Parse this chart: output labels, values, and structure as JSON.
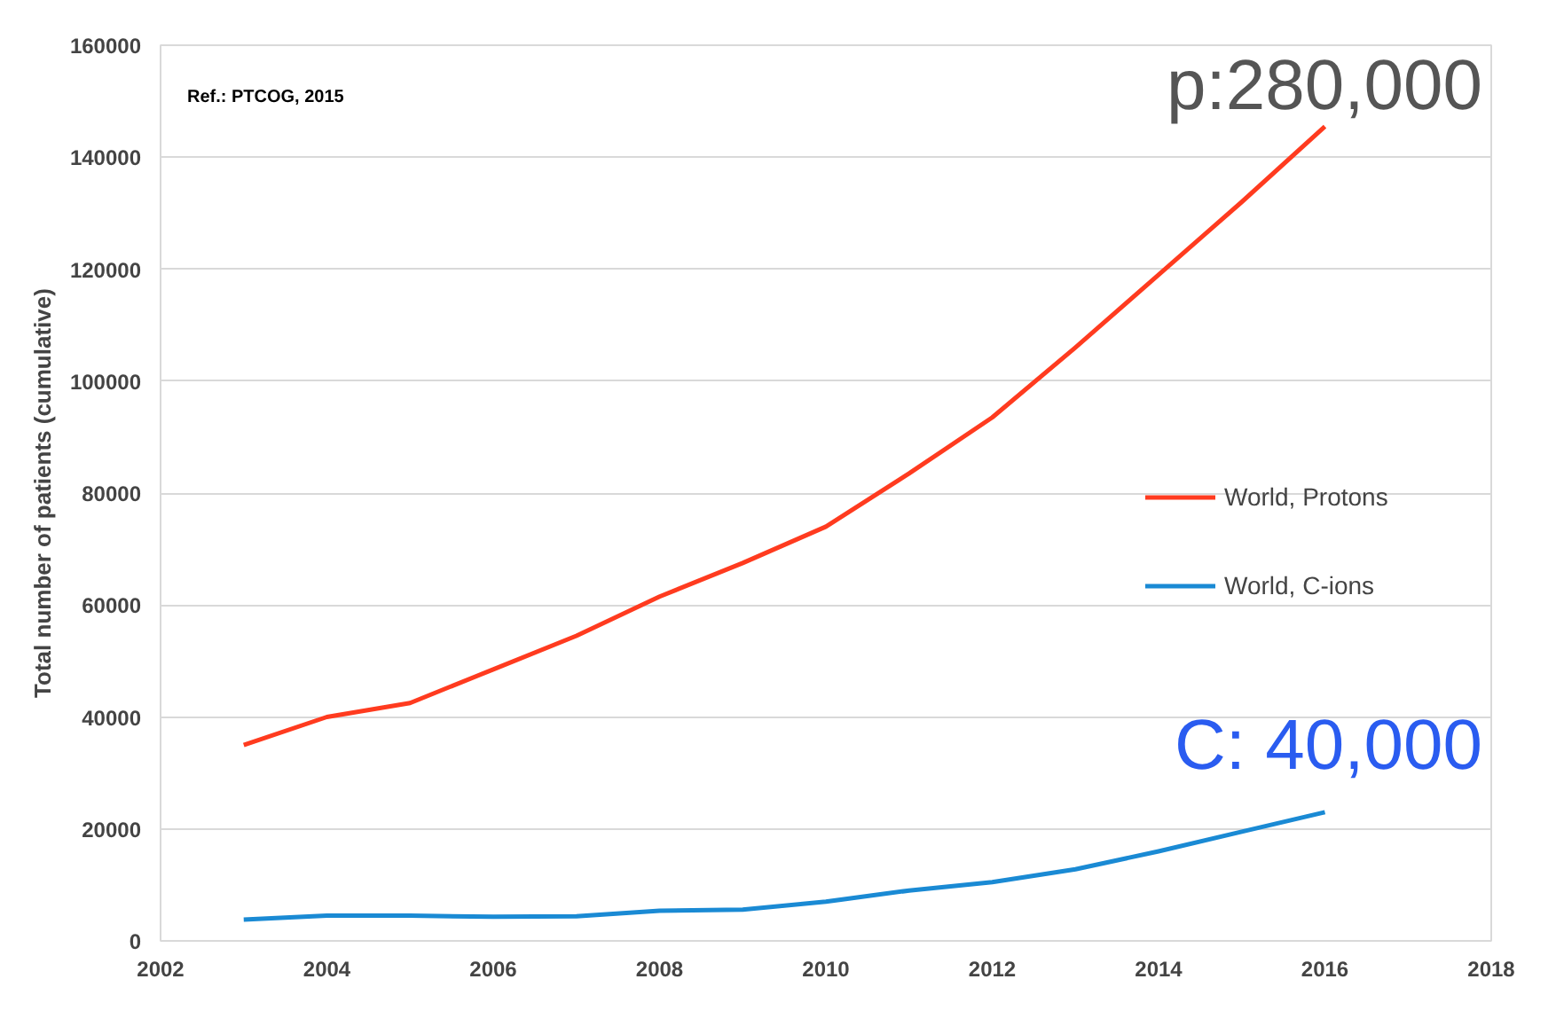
{
  "chart_data": {
    "type": "line",
    "ylabel": "Total number of patients (cumulative)",
    "x": [
      2003,
      2004,
      2005,
      2006,
      2007,
      2008,
      2009,
      2010,
      2011,
      2012,
      2013,
      2014,
      2015,
      2016
    ],
    "series": [
      {
        "name": "World, Protons",
        "color": "#ff3b1f",
        "values": [
          35000,
          40000,
          42500,
          48500,
          54500,
          61500,
          67500,
          74000,
          83500,
          93500,
          106000,
          119000,
          132000,
          145500
        ]
      },
      {
        "name": "World, C-ions",
        "color": "#1a8ad4",
        "values": [
          3800,
          4500,
          4500,
          4300,
          4400,
          5400,
          5600,
          7000,
          9000,
          10500,
          12800,
          16000,
          19500,
          23000
        ]
      }
    ],
    "xlim": [
      2002,
      2018
    ],
    "xticks": [
      2002,
      2004,
      2006,
      2008,
      2010,
      2012,
      2014,
      2016,
      2018
    ],
    "ylim": [
      0,
      160000
    ],
    "yticks": [
      0,
      20000,
      40000,
      60000,
      80000,
      100000,
      120000,
      140000,
      160000
    ],
    "grid": "y",
    "legend": "right",
    "marker": "none",
    "line_style": "solid",
    "annotations": [
      "Ref.: PTCOG, 2015",
      "p:280,000",
      "C: 40,000"
    ]
  }
}
